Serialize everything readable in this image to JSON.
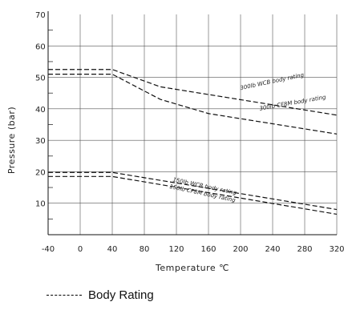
{
  "chart_data": {
    "type": "line",
    "xlabel": "Temperature ℃",
    "ylabel": "Pressure (bar)",
    "xlim": [
      -40,
      320
    ],
    "ylim": [
      0,
      70
    ],
    "x_ticks": [
      "-40",
      "0",
      "40",
      "80",
      "120",
      "160",
      "200",
      "240",
      "280",
      "320"
    ],
    "y_ticks": [
      "10",
      "20",
      "30",
      "40",
      "50",
      "60",
      "70"
    ],
    "grid": true,
    "line_style": "dashed",
    "series": [
      {
        "name": "300lb WCB body rating",
        "x": [
          -40,
          40,
          100,
          320
        ],
        "y": [
          52.5,
          52.5,
          47,
          38
        ]
      },
      {
        "name": "300lb CF8M body rating",
        "x": [
          -40,
          40,
          100,
          160,
          320
        ],
        "y": [
          51,
          51,
          43,
          38.5,
          32
        ]
      },
      {
        "name": "150lb WCB body rating",
        "x": [
          -40,
          40,
          320
        ],
        "y": [
          19.8,
          19.8,
          8
        ]
      },
      {
        "name": "150lb CF8M body rating",
        "x": [
          -40,
          40,
          320
        ],
        "y": [
          18.5,
          18.5,
          6.5
        ]
      }
    ],
    "legend": {
      "label": "Body Rating",
      "placement": "bottom-left"
    }
  }
}
